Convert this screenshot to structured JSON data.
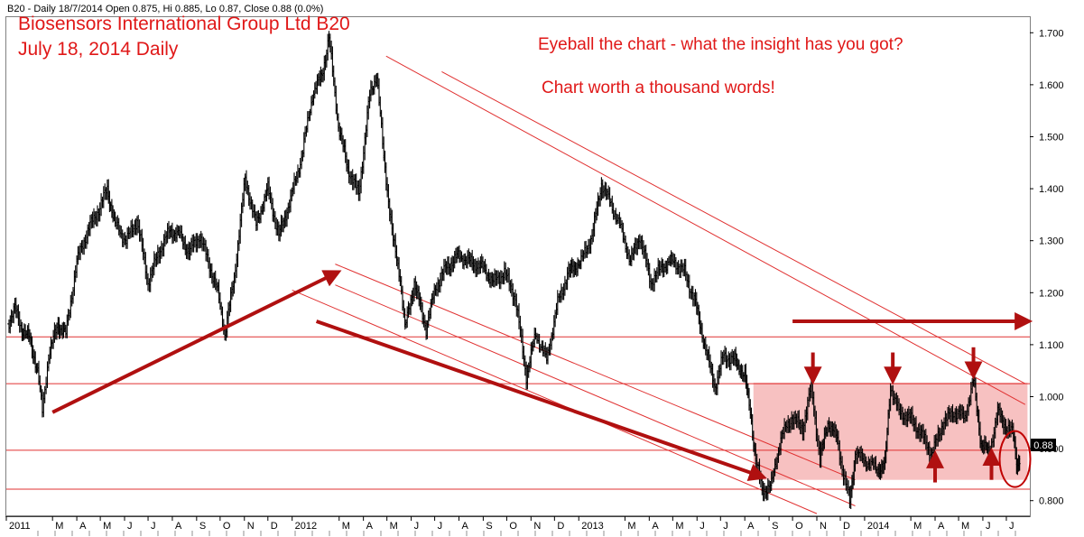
{
  "header_info": "B20 - Daily 18/7/2014 Open 0.875, Hi 0.885, Lo 0.87, Close 0.88 (0.0%)",
  "annotations": {
    "title_line1": "Biosensors International Group Ltd B20",
    "title_line2": "July 18, 2014 Daily",
    "question": "Eyeball the chart - what the insight has you got?",
    "tagline": "Chart worth a thousand words!"
  },
  "colors": {
    "price_bar": "#000000",
    "annotation_red": "#e01818",
    "arrow_dark_red": "#b01010",
    "range_box": "#f4a6a6",
    "channel_line": "#e03030",
    "background": "#ffffff"
  },
  "chart_data": {
    "type": "line",
    "title": "Biosensors International Group Ltd B20",
    "subtitle": "July 18, 2014 Daily",
    "ylim": [
      0.77,
      1.73
    ],
    "y_axis_side": "right",
    "y_ticks": [
      "1.700",
      "1.600",
      "1.500",
      "1.400",
      "1.300",
      "1.200",
      "1.100",
      "1.000",
      "0.900",
      "0.800"
    ],
    "x_ticks": [
      "2011",
      "M",
      "A",
      "M",
      "J",
      "J",
      "A",
      "S",
      "O",
      "N",
      "D",
      "2012",
      "M",
      "A",
      "M",
      "J",
      "J",
      "A",
      "S",
      "O",
      "N",
      "D",
      "2013",
      "M",
      "A",
      "M",
      "J",
      "J",
      "A",
      "S",
      "O",
      "N",
      "D",
      "2014",
      "M",
      "A",
      "M",
      "J",
      "J"
    ],
    "last_price_label": "0.88",
    "series": [
      {
        "values": [
          [
            "2011-01-03",
            1.14
          ],
          [
            "2011-01-12",
            1.17
          ],
          [
            "2011-01-21",
            1.13
          ],
          [
            "2011-01-31",
            1.11
          ],
          [
            "2011-02-10",
            1.05
          ],
          [
            "2011-02-16",
            0.97
          ],
          [
            "2011-02-24",
            1.08
          ],
          [
            "2011-03-08",
            1.14
          ],
          [
            "2011-03-18",
            1.12
          ],
          [
            "2011-04-01",
            1.26
          ],
          [
            "2011-04-15",
            1.32
          ],
          [
            "2011-04-29",
            1.36
          ],
          [
            "2011-05-10",
            1.4
          ],
          [
            "2011-05-20",
            1.33
          ],
          [
            "2011-06-03",
            1.3
          ],
          [
            "2011-06-17",
            1.34
          ],
          [
            "2011-07-01",
            1.22
          ],
          [
            "2011-07-15",
            1.28
          ],
          [
            "2011-07-29",
            1.32
          ],
          [
            "2011-08-10",
            1.31
          ],
          [
            "2011-08-22",
            1.28
          ],
          [
            "2011-09-05",
            1.31
          ],
          [
            "2011-09-16",
            1.26
          ],
          [
            "2011-09-28",
            1.2
          ],
          [
            "2011-10-07",
            1.12
          ],
          [
            "2011-10-19",
            1.23
          ],
          [
            "2011-11-02",
            1.42
          ],
          [
            "2011-11-16",
            1.33
          ],
          [
            "2011-12-01",
            1.4
          ],
          [
            "2011-12-15",
            1.31
          ],
          [
            "2011-12-30",
            1.38
          ],
          [
            "2012-01-13",
            1.46
          ],
          [
            "2012-01-27",
            1.58
          ],
          [
            "2012-02-08",
            1.62
          ],
          [
            "2012-02-17",
            1.69
          ],
          [
            "2012-02-29",
            1.52
          ],
          [
            "2012-03-12",
            1.44
          ],
          [
            "2012-03-26",
            1.39
          ],
          [
            "2012-04-09",
            1.58
          ],
          [
            "2012-04-18",
            1.62
          ],
          [
            "2012-04-27",
            1.46
          ],
          [
            "2012-05-09",
            1.3
          ],
          [
            "2012-05-18",
            1.23
          ],
          [
            "2012-05-24",
            1.13
          ],
          [
            "2012-06-05",
            1.22
          ],
          [
            "2012-06-20",
            1.13
          ],
          [
            "2012-07-02",
            1.21
          ],
          [
            "2012-07-16",
            1.25
          ],
          [
            "2012-07-31",
            1.27
          ],
          [
            "2012-08-15",
            1.26
          ],
          [
            "2012-08-30",
            1.25
          ],
          [
            "2012-09-14",
            1.22
          ],
          [
            "2012-09-28",
            1.24
          ],
          [
            "2012-10-12",
            1.19
          ],
          [
            "2012-10-26",
            1.04
          ],
          [
            "2012-11-07",
            1.12
          ],
          [
            "2012-11-21",
            1.07
          ],
          [
            "2012-12-05",
            1.18
          ],
          [
            "2012-12-19",
            1.24
          ],
          [
            "2013-01-04",
            1.26
          ],
          [
            "2013-01-18",
            1.31
          ],
          [
            "2013-01-30",
            1.41
          ],
          [
            "2013-02-08",
            1.38
          ],
          [
            "2013-02-22",
            1.33
          ],
          [
            "2013-03-08",
            1.26
          ],
          [
            "2013-03-20",
            1.31
          ],
          [
            "2013-04-03",
            1.22
          ],
          [
            "2013-04-17",
            1.25
          ],
          [
            "2013-05-02",
            1.26
          ],
          [
            "2013-05-16",
            1.24
          ],
          [
            "2013-05-30",
            1.18
          ],
          [
            "2013-06-12",
            1.09
          ],
          [
            "2013-06-24",
            1.02
          ],
          [
            "2013-07-05",
            1.08
          ],
          [
            "2013-07-19",
            1.07
          ],
          [
            "2013-08-01",
            1.04
          ],
          [
            "2013-08-08",
            0.97
          ],
          [
            "2013-08-15",
            0.88
          ],
          [
            "2013-08-23",
            0.82
          ],
          [
            "2013-09-04",
            0.83
          ],
          [
            "2013-09-16",
            0.92
          ],
          [
            "2013-09-30",
            0.96
          ],
          [
            "2013-10-14",
            0.94
          ],
          [
            "2013-10-25",
            1.02
          ],
          [
            "2013-11-05",
            0.88
          ],
          [
            "2013-11-15",
            0.95
          ],
          [
            "2013-11-27",
            0.92
          ],
          [
            "2013-12-05",
            0.85
          ],
          [
            "2013-12-13",
            0.8
          ],
          [
            "2013-12-20",
            0.89
          ],
          [
            "2014-01-06",
            0.87
          ],
          [
            "2014-01-17",
            0.86
          ],
          [
            "2014-01-27",
            0.87
          ],
          [
            "2014-02-03",
            1.02
          ],
          [
            "2014-02-14",
            0.97
          ],
          [
            "2014-02-28",
            0.96
          ],
          [
            "2014-03-14",
            0.93
          ],
          [
            "2014-03-28",
            0.89
          ],
          [
            "2014-04-11",
            0.95
          ],
          [
            "2014-04-25",
            0.97
          ],
          [
            "2014-05-09",
            0.96
          ],
          [
            "2014-05-20",
            1.03
          ],
          [
            "2014-05-30",
            0.91
          ],
          [
            "2014-06-09",
            0.89
          ],
          [
            "2014-06-20",
            0.97
          ],
          [
            "2014-07-02",
            0.94
          ],
          [
            "2014-07-10",
            0.93
          ],
          [
            "2014-07-14",
            0.87
          ],
          [
            "2014-07-18",
            0.88
          ]
        ]
      }
    ],
    "horizontal_lines": [
      1.115,
      1.025,
      0.897,
      0.822
    ],
    "range_box": {
      "x": [
        "2013-08-12",
        "2014-07-28"
      ],
      "y": [
        0.84,
        1.027
      ]
    },
    "channel_lines": [
      [
        [
          "2012-04-30",
          1.655
        ],
        [
          "2014-07-25",
          0.985
        ]
      ],
      [
        [
          "2012-07-10",
          1.625
        ],
        [
          "2014-07-25",
          1.025
        ]
      ],
      [
        [
          "2012-02-25",
          1.215
        ],
        [
          "2013-12-20",
          0.79
        ]
      ],
      [
        [
          "2012-02-25",
          1.255
        ],
        [
          "2013-12-20",
          0.84
        ]
      ],
      [
        [
          "2012-01-01",
          1.205
        ],
        [
          "2013-11-01",
          0.775
        ]
      ]
    ],
    "trend_arrows": [
      [
        [
          "2011-03-01",
          0.97
        ],
        [
          "2012-02-29",
          1.24
        ]
      ],
      [
        [
          "2012-02-01",
          1.145
        ],
        [
          "2013-08-25",
          0.845
        ]
      ],
      [
        [
          "2013-10-01",
          1.145
        ],
        [
          "2014-07-30",
          1.145
        ]
      ]
    ],
    "marker_arrows": [
      {
        "date": "2013-10-27",
        "direction": "down",
        "from": 1.085,
        "to": 1.03
      },
      {
        "date": "2014-02-06",
        "direction": "down",
        "from": 1.085,
        "to": 1.03
      },
      {
        "date": "2014-05-20",
        "direction": "down",
        "from": 1.095,
        "to": 1.04
      },
      {
        "date": "2014-04-01",
        "direction": "up",
        "from": 0.835,
        "to": 0.89
      },
      {
        "date": "2014-06-12",
        "direction": "up",
        "from": 0.84,
        "to": 0.895
      }
    ],
    "highlight_circle": {
      "date": "2014-07-12",
      "value": 0.88
    }
  }
}
